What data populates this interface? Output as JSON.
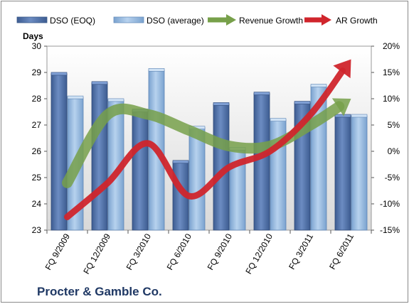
{
  "chart_data": {
    "type": "bar",
    "title": "Procter & Gamble Co.",
    "ylabel": "Days",
    "categories": [
      "FQ 9/2009",
      "FQ 12/2009",
      "FQ 3/2010",
      "FQ 6/2010",
      "FQ 9/2010",
      "FQ 12/2010",
      "FQ 3/2011",
      "FQ 6/2011"
    ],
    "y_left": {
      "lim": [
        23,
        30
      ],
      "ticks": [
        "23",
        "24",
        "25",
        "26",
        "27",
        "28",
        "29",
        "30"
      ]
    },
    "y_right": {
      "lim": [
        -15,
        20
      ],
      "ticks": [
        "-15%",
        "-10%",
        "-5%",
        "0%",
        "5%",
        "10%",
        "15%",
        "20%"
      ]
    },
    "grid": false,
    "legend_position": "top",
    "bar_series": [
      {
        "name": "DSO (EOQ)",
        "color": "#4f6fa6",
        "values": [
          28.95,
          28.6,
          27.55,
          25.6,
          27.8,
          28.2,
          27.85,
          27.35
        ]
      },
      {
        "name": "DSO (average)",
        "color": "#8fb4dc",
        "values": [
          28.05,
          27.95,
          29.1,
          26.9,
          26.1,
          27.2,
          28.5,
          27.35
        ]
      }
    ],
    "line_series": [
      {
        "name": "Revenue Growth",
        "color": "#77a04a",
        "axis": "right",
        "values": [
          -6,
          7,
          7,
          4,
          1,
          1,
          5,
          10
        ]
      },
      {
        "name": "AR Growth",
        "color": "#d0252c",
        "axis": "right",
        "values": [
          -12.5,
          -6,
          1.5,
          -8.5,
          -3,
          0,
          7,
          17.5
        ]
      }
    ]
  }
}
